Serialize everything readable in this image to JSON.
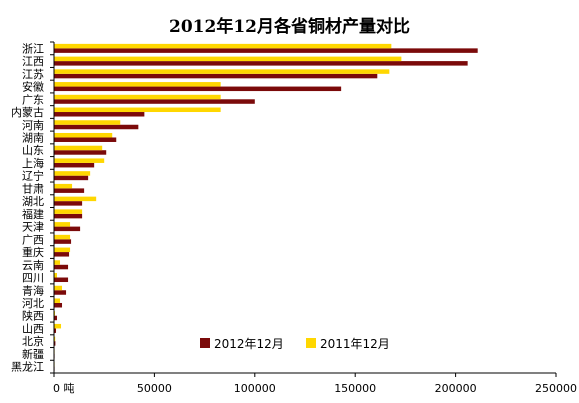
{
  "chart_data": {
    "type": "bar",
    "orientation": "horizontal",
    "title": "2012年12月各省铜材产量对比",
    "xlabel": "",
    "ylabel": "",
    "xlim": [
      0,
      250000
    ],
    "x_ticks": [
      0,
      50000,
      100000,
      150000,
      200000,
      250000
    ],
    "x_tick_labels": [
      "0 吨",
      "50000",
      "100000",
      "150000",
      "200000",
      "250000"
    ],
    "categories": [
      "浙江",
      "江西",
      "江苏",
      "安徽",
      "广东",
      "内蒙古",
      "河南",
      "湖南",
      "山东",
      "上海",
      "辽宁",
      "甘肃",
      "湖北",
      "福建",
      "天津",
      "广西",
      "重庆",
      "云南",
      "四川",
      "青海",
      "河北",
      "陕西",
      "山西",
      "北京",
      "新疆",
      "黑龙江"
    ],
    "series": [
      {
        "name": "2012年12月",
        "color": "#7B0A0A",
        "values": [
          211000,
          206000,
          161000,
          143000,
          100000,
          45000,
          42000,
          31000,
          26000,
          20000,
          17000,
          15000,
          14000,
          14000,
          13000,
          8500,
          7500,
          7000,
          7000,
          6000,
          4000,
          1500,
          1000,
          700,
          200,
          100
        ]
      },
      {
        "name": "2011年12月",
        "color": "#FFD700",
        "values": [
          168000,
          173000,
          167000,
          83000,
          83000,
          83000,
          33000,
          29000,
          24000,
          25000,
          18000,
          9000,
          21000,
          14000,
          8000,
          8000,
          8000,
          3000,
          1500,
          4000,
          3000,
          500,
          3500,
          600,
          200,
          100
        ]
      }
    ],
    "grid": false,
    "legend_position": "bottom-center"
  }
}
